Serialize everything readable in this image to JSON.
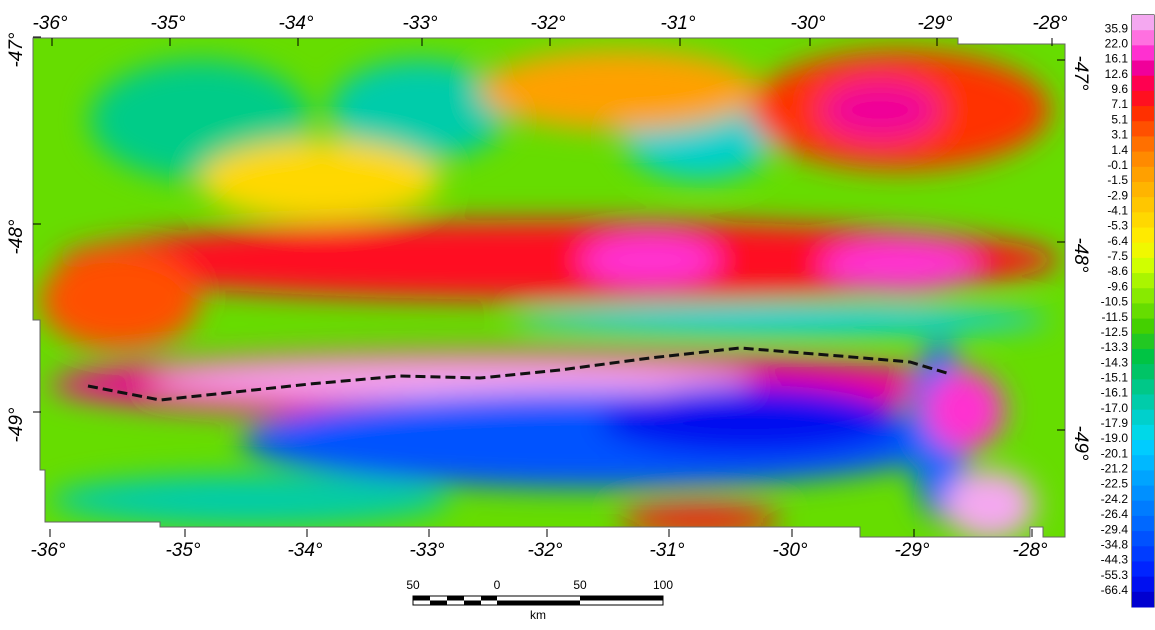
{
  "map": {
    "top_longitudes": [
      "-36°",
      "-35°",
      "-34°",
      "-33°",
      "-32°",
      "-31°",
      "-30°",
      "-29°",
      "-28°"
    ],
    "bottom_longitudes": [
      "-36°",
      "-35°",
      "-34°",
      "-33°",
      "-32°",
      "-31°",
      "-30°",
      "-29°",
      "-28°"
    ],
    "left_latitudes": [
      "-47°",
      "-48°",
      "-49°"
    ],
    "right_latitudes": [
      "-47°",
      "-48°",
      "-49°"
    ]
  },
  "colorbar": {
    "labels": [
      "35.9",
      "22.0",
      "16.1",
      "12.6",
      "9.6",
      "7.1",
      "5.1",
      "3.1",
      "1.4",
      "-0.1",
      "-1.5",
      "-2.9",
      "-4.1",
      "-5.3",
      "-6.4",
      "-7.5",
      "-8.6",
      "-9.6",
      "-10.5",
      "-11.5",
      "-12.5",
      "-13.3",
      "-14.3",
      "-15.1",
      "-16.1",
      "-17.0",
      "-17.9",
      "-19.0",
      "-20.1",
      "-21.2",
      "-22.5",
      "-24.2",
      "-26.4",
      "-29.4",
      "-34.8",
      "-44.3",
      "-55.3",
      "-66.4"
    ],
    "colors": [
      "#f4a8f0",
      "#ff70e0",
      "#ff30d0",
      "#f0009a",
      "#ff0050",
      "#ff1020",
      "#ff3000",
      "#ff5000",
      "#ff7000",
      "#ff8a00",
      "#ffa000",
      "#ffb400",
      "#ffc600",
      "#ffd800",
      "#ffea00",
      "#f0f800",
      "#d0ff00",
      "#aaf500",
      "#88ea00",
      "#66dd00",
      "#44d000",
      "#22c822",
      "#00c444",
      "#00c466",
      "#00c888",
      "#00ccaa",
      "#00d0cc",
      "#00d8e8",
      "#00ccff",
      "#00b8ff",
      "#00a4ff",
      "#0090ff",
      "#007cff",
      "#0068ff",
      "#0052ff",
      "#003cff",
      "#0024ff",
      "#0010f0",
      "#0000d0"
    ]
  },
  "scale_bar": {
    "labels": [
      "50",
      "0",
      "50",
      "100"
    ],
    "unit": "km"
  }
}
